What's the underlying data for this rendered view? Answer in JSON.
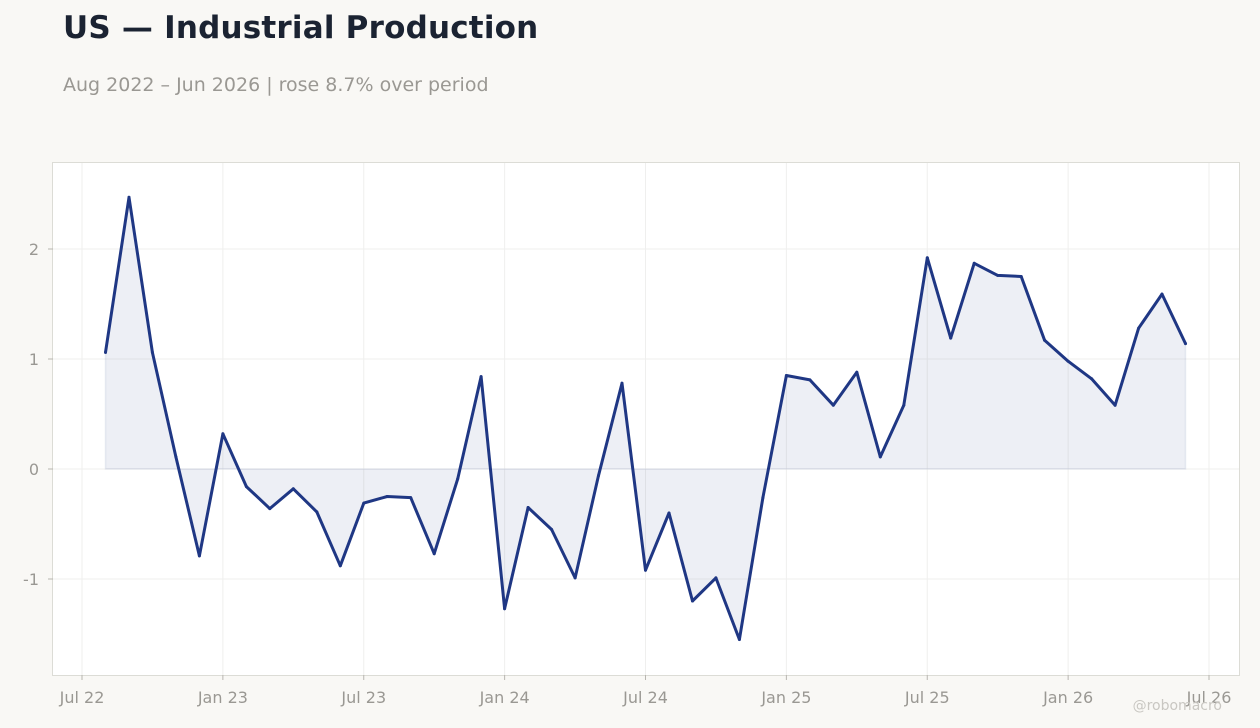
{
  "chart_data": {
    "type": "area",
    "title": "US — Industrial Production",
    "subtitle": "Aug 2022 – Jun 2026 | rose 8.7% over period",
    "xlabel": "",
    "ylabel": "",
    "x_start": "2022-08",
    "x_end": "2026-06",
    "x_ticks": [
      "Jul 22",
      "Jan 23",
      "Jul 23",
      "Jan 24",
      "Jul 24",
      "Jan 25",
      "Jul 25",
      "Jan 26",
      "Jul 26"
    ],
    "x_tick_dates": [
      "2022-07",
      "2023-01",
      "2023-07",
      "2024-01",
      "2024-07",
      "2025-01",
      "2025-07",
      "2026-01",
      "2026-07"
    ],
    "y_ticks": [
      -1,
      0,
      1,
      2
    ],
    "ylim": [
      -1.87,
      2.8
    ],
    "grid": true,
    "series": [
      {
        "x": [
          "2022-08",
          "2022-09",
          "2022-10",
          "2022-11",
          "2022-12",
          "2023-01",
          "2023-02",
          "2023-03",
          "2023-04",
          "2023-05",
          "2023-06",
          "2023-07",
          "2023-08",
          "2023-09",
          "2023-10",
          "2023-11",
          "2023-12",
          "2024-01",
          "2024-02",
          "2024-03",
          "2024-04",
          "2024-05",
          "2024-06",
          "2024-07",
          "2024-08",
          "2024-09",
          "2024-10",
          "2024-11",
          "2024-12",
          "2025-01",
          "2025-02",
          "2025-03",
          "2025-04",
          "2025-05",
          "2025-06",
          "2025-07",
          "2025-08",
          "2025-09",
          "2025-10",
          "2025-11",
          "2025-12",
          "2026-01",
          "2026-02",
          "2026-03",
          "2026-04",
          "2026-05",
          "2026-06"
        ],
        "values": [
          1.06,
          2.47,
          1.06,
          0.11,
          -0.79,
          0.32,
          -0.16,
          -0.36,
          -0.18,
          -0.39,
          -0.88,
          -0.31,
          -0.25,
          -0.26,
          -0.77,
          -0.09,
          0.84,
          -1.27,
          -0.35,
          -0.55,
          -0.99,
          -0.06,
          0.78,
          -0.92,
          -0.4,
          -1.2,
          -0.99,
          -1.55,
          -0.26,
          0.85,
          0.81,
          0.58,
          0.88,
          0.11,
          0.58,
          1.92,
          1.19,
          1.87,
          1.76,
          1.75,
          1.17,
          0.98,
          0.82,
          0.58,
          1.28,
          1.59,
          1.14
        ]
      }
    ],
    "colors": {
      "line": "#1f3784",
      "fill": "#1f3784",
      "grid": "#efefee",
      "axis_text": "#9a9893",
      "frame": "#dcdcd6"
    }
  },
  "watermark": "@robomacro"
}
